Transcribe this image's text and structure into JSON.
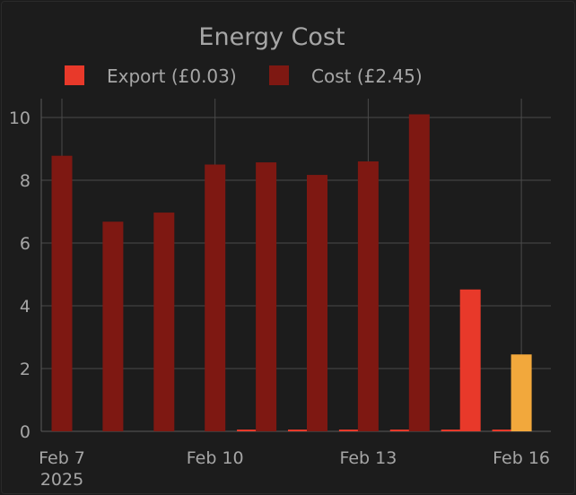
{
  "chart_data": {
    "type": "bar",
    "title": "Energy Cost",
    "x": [
      "2025-02-07",
      "2025-02-08",
      "2025-02-09",
      "2025-02-10",
      "2025-02-11",
      "2025-02-12",
      "2025-02-13",
      "2025-02-14",
      "2025-02-15",
      "2025-02-16"
    ],
    "x_tick_labels": [
      {
        "date": "2025-02-07",
        "label": "Feb 7",
        "sublabel": "2025"
      },
      {
        "date": "2025-02-10",
        "label": "Feb 10",
        "sublabel": ""
      },
      {
        "date": "2025-02-13",
        "label": "Feb 13",
        "sublabel": ""
      },
      {
        "date": "2025-02-16",
        "label": "Feb 16",
        "sublabel": ""
      }
    ],
    "y_ticks": [
      0,
      2,
      4,
      6,
      8,
      10
    ],
    "ylim": [
      0,
      10.6
    ],
    "grid": true,
    "legend_position": "top",
    "series": [
      {
        "name": "Export (£0.03)",
        "color": "#e8392a",
        "values": [
          0,
          0,
          0,
          0,
          0.03,
          0.03,
          0.03,
          0.03,
          0.03,
          0.03
        ]
      },
      {
        "name": "Cost (£2.45)",
        "color": "#7e1812",
        "values": [
          8.78,
          6.68,
          6.97,
          8.5,
          8.57,
          8.17,
          8.6,
          10.1,
          4.52,
          2.45
        ],
        "point_colors": [
          "#7e1812",
          "#7e1812",
          "#7e1812",
          "#7e1812",
          "#7e1812",
          "#7e1812",
          "#7e1812",
          "#7e1812",
          "#e8392a",
          "#f2a83c"
        ]
      }
    ]
  }
}
